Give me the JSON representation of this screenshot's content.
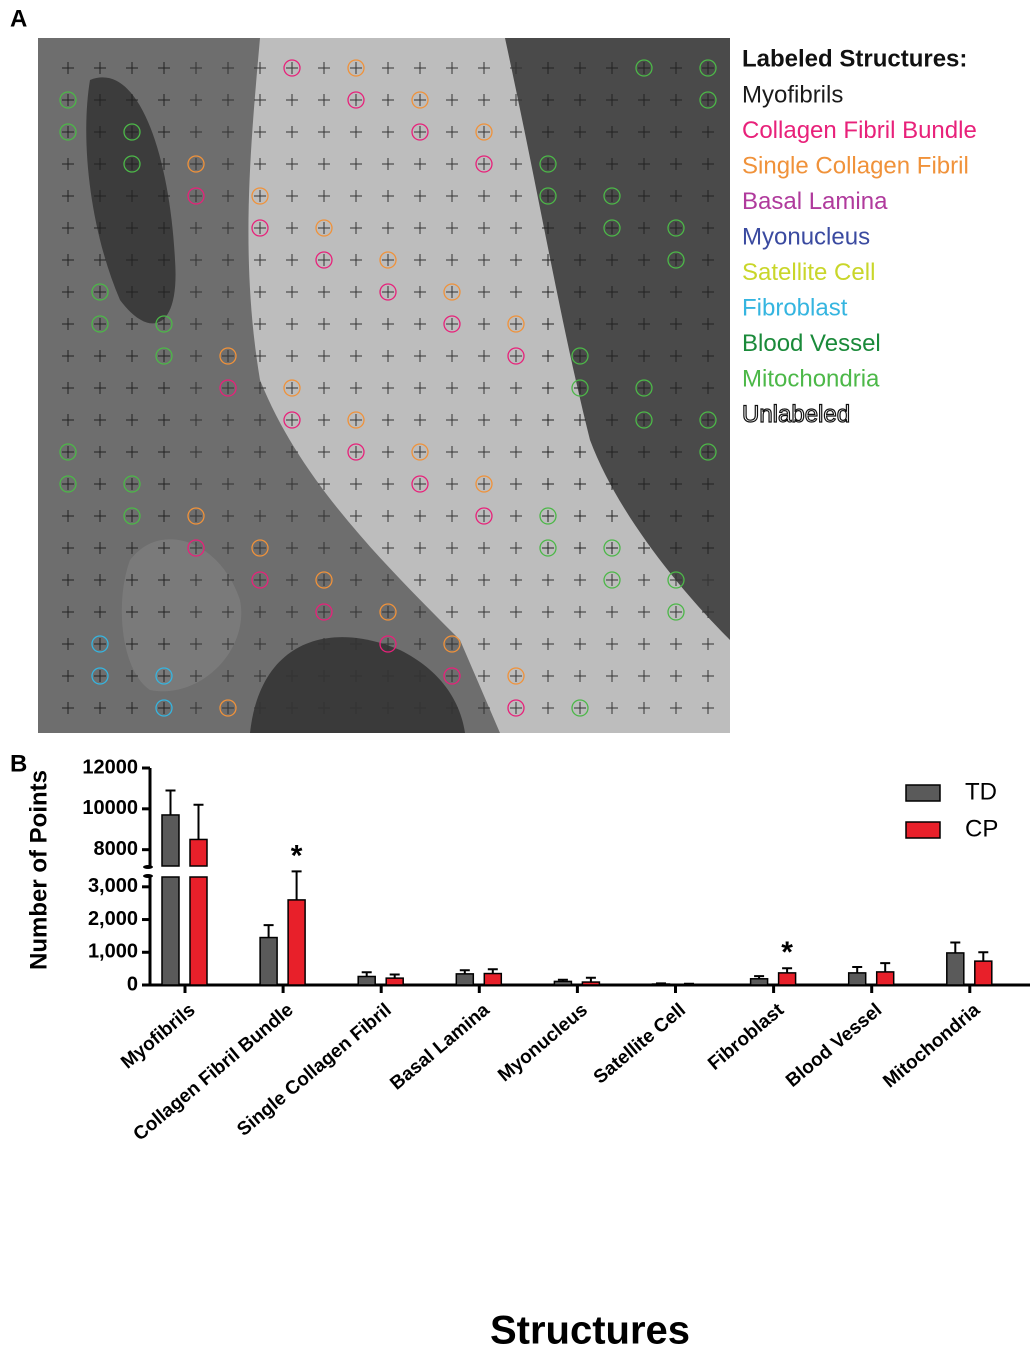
{
  "panel_a": {
    "label": "A",
    "legend_title": "Labeled Structures:",
    "legend": [
      {
        "name": "Myofibrils",
        "color": "#1a1a1a"
      },
      {
        "name": "Collagen Fibril Bundle",
        "color": "#e8217a"
      },
      {
        "name": "Single Collagen Fibril",
        "color": "#f0923a"
      },
      {
        "name": "Basal Lamina",
        "color": "#b03a9c"
      },
      {
        "name": "Myonucleus",
        "color": "#3a4aa0"
      },
      {
        "name": "Satellite Cell",
        "color": "#c9d62a"
      },
      {
        "name": "Fibroblast",
        "color": "#35b5e0"
      },
      {
        "name": "Blood Vessel",
        "color": "#1a8a3a"
      },
      {
        "name": "Mitochondria",
        "color": "#4cb848"
      },
      {
        "name": "Unlabeled",
        "color": "#ffffff"
      }
    ]
  },
  "chart_data": {
    "type": "bar",
    "label": "B",
    "x_label": "Structures",
    "y_label": "Number of Points",
    "categories": [
      "Myofibrils",
      "Collagen Fibril Bundle",
      "Single Collagen Fibril",
      "Basal Lamina",
      "Myonucleus",
      "Satellite Cell",
      "Fibroblast",
      "Blood Vessel",
      "Mitochondria"
    ],
    "series": [
      {
        "name": "TD",
        "color": "#5a5a5a",
        "values": [
          9700,
          1450,
          260,
          340,
          110,
          30,
          190,
          370,
          980
        ],
        "errors": [
          1200,
          380,
          130,
          110,
          50,
          20,
          80,
          180,
          320
        ]
      },
      {
        "name": "CP",
        "color": "#e8202a",
        "values": [
          8500,
          2600,
          210,
          350,
          90,
          20,
          370,
          400,
          730
        ],
        "errors": [
          1700,
          870,
          110,
          130,
          130,
          20,
          140,
          270,
          270
        ],
        "value_annotations": [
          null,
          "*",
          null,
          null,
          null,
          null,
          "*",
          null,
          null
        ]
      }
    ],
    "y_axis_segments": [
      {
        "ylim": [
          0,
          3300
        ],
        "yticks": [
          0,
          {
            "value": 1000,
            "label": "1,000"
          },
          {
            "value": 2000,
            "label": "2,000"
          },
          {
            "value": 3000,
            "label": "3,000"
          }
        ]
      },
      {
        "ylim": [
          7200,
          12000
        ],
        "yticks": [
          8000,
          10000,
          12000
        ]
      }
    ],
    "legend_position": "upper right"
  }
}
